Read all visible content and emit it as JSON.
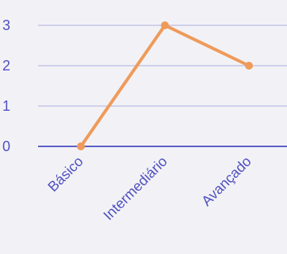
{
  "chart_data": {
    "type": "line",
    "categories": [
      "Básico",
      "Intermediário",
      "Avançado"
    ],
    "series": [
      {
        "values": [
          0,
          3,
          2
        ]
      }
    ],
    "ylim": [
      0,
      3
    ],
    "yticks": [
      0,
      1,
      2,
      3
    ],
    "grid": true,
    "colors": {
      "line": "#ef9a5a",
      "gridline": "#bdbde6",
      "axis": "#5e5ec8",
      "label": "#5050c0",
      "background": "#f2f2f6"
    }
  }
}
